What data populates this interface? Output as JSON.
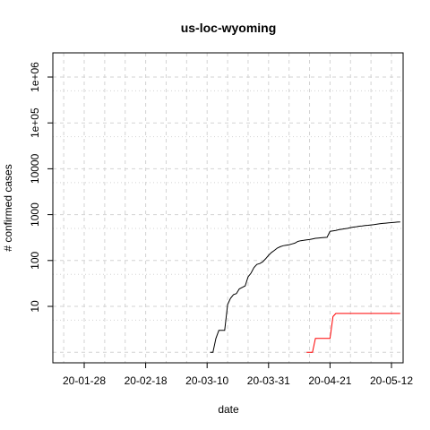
{
  "chart_data": {
    "type": "line",
    "title": "us-loc-wyoming",
    "xlabel": "date",
    "ylabel": "# confirmed cases",
    "y_scale": "log",
    "grid": true,
    "x_ticks": [
      "20-01-28",
      "20-02-18",
      "20-03-10",
      "20-03-31",
      "20-04-21",
      "20-05-12"
    ],
    "y_ticks": [
      "10",
      "100",
      "1000",
      "10000",
      "1e+05",
      "1e+06"
    ],
    "series": [
      {
        "color": "#000000",
        "points": [
          [
            "2020-03-11",
            1
          ],
          [
            "2020-03-12",
            1
          ],
          [
            "2020-03-13",
            2
          ],
          [
            "2020-03-14",
            3
          ],
          [
            "2020-03-15",
            3
          ],
          [
            "2020-03-16",
            3
          ],
          [
            "2020-03-17",
            11
          ],
          [
            "2020-03-18",
            15
          ],
          [
            "2020-03-19",
            18
          ],
          [
            "2020-03-20",
            19
          ],
          [
            "2020-03-21",
            24
          ],
          [
            "2020-03-22",
            26
          ],
          [
            "2020-03-23",
            28
          ],
          [
            "2020-03-24",
            44
          ],
          [
            "2020-03-25",
            53
          ],
          [
            "2020-03-26",
            70
          ],
          [
            "2020-03-27",
            82
          ],
          [
            "2020-03-28",
            86
          ],
          [
            "2020-03-29",
            94
          ],
          [
            "2020-03-30",
            109
          ],
          [
            "2020-03-31",
            130
          ],
          [
            "2020-04-01",
            150
          ],
          [
            "2020-04-02",
            166
          ],
          [
            "2020-04-03",
            187
          ],
          [
            "2020-04-04",
            200
          ],
          [
            "2020-04-05",
            210
          ],
          [
            "2020-04-06",
            216
          ],
          [
            "2020-04-07",
            221
          ],
          [
            "2020-04-08",
            230
          ],
          [
            "2020-04-09",
            239
          ],
          [
            "2020-04-10",
            261
          ],
          [
            "2020-04-11",
            270
          ],
          [
            "2020-04-12",
            275
          ],
          [
            "2020-04-13",
            282
          ],
          [
            "2020-04-14",
            287
          ],
          [
            "2020-04-15",
            296
          ],
          [
            "2020-04-16",
            305
          ],
          [
            "2020-04-17",
            309
          ],
          [
            "2020-04-18",
            313
          ],
          [
            "2020-04-19",
            317
          ],
          [
            "2020-04-20",
            320
          ],
          [
            "2020-04-21",
            434
          ],
          [
            "2020-04-22",
            443
          ],
          [
            "2020-04-23",
            453
          ],
          [
            "2020-04-24",
            470
          ],
          [
            "2020-04-25",
            480
          ],
          [
            "2020-04-26",
            491
          ],
          [
            "2020-04-27",
            502
          ],
          [
            "2020-04-28",
            520
          ],
          [
            "2020-04-29",
            536
          ],
          [
            "2020-04-30",
            545
          ],
          [
            "2020-05-01",
            559
          ],
          [
            "2020-05-02",
            566
          ],
          [
            "2020-05-03",
            579
          ],
          [
            "2020-05-04",
            586
          ],
          [
            "2020-05-05",
            596
          ],
          [
            "2020-05-06",
            604
          ],
          [
            "2020-05-07",
            620
          ],
          [
            "2020-05-08",
            631
          ],
          [
            "2020-05-09",
            644
          ],
          [
            "2020-05-10",
            653
          ],
          [
            "2020-05-11",
            661
          ],
          [
            "2020-05-12",
            669
          ],
          [
            "2020-05-13",
            678
          ],
          [
            "2020-05-14",
            688
          ],
          [
            "2020-05-15",
            694
          ]
        ]
      },
      {
        "color": "#ff0000",
        "points": [
          [
            "2020-04-13",
            1
          ],
          [
            "2020-04-14",
            1
          ],
          [
            "2020-04-15",
            1
          ],
          [
            "2020-04-16",
            2
          ],
          [
            "2020-04-17",
            2
          ],
          [
            "2020-04-18",
            2
          ],
          [
            "2020-04-19",
            2
          ],
          [
            "2020-04-20",
            2
          ],
          [
            "2020-04-21",
            2
          ],
          [
            "2020-04-22",
            6
          ],
          [
            "2020-04-23",
            7
          ],
          [
            "2020-04-24",
            7
          ],
          [
            "2020-04-25",
            7
          ],
          [
            "2020-04-26",
            7
          ],
          [
            "2020-04-27",
            7
          ],
          [
            "2020-04-28",
            7
          ],
          [
            "2020-04-29",
            7
          ],
          [
            "2020-04-30",
            7
          ],
          [
            "2020-05-01",
            7
          ],
          [
            "2020-05-02",
            7
          ],
          [
            "2020-05-03",
            7
          ],
          [
            "2020-05-04",
            7
          ],
          [
            "2020-05-05",
            7
          ],
          [
            "2020-05-06",
            7
          ],
          [
            "2020-05-07",
            7
          ],
          [
            "2020-05-08",
            7
          ],
          [
            "2020-05-09",
            7
          ],
          [
            "2020-05-10",
            7
          ],
          [
            "2020-05-11",
            7
          ],
          [
            "2020-05-12",
            7
          ],
          [
            "2020-05-13",
            7
          ],
          [
            "2020-05-14",
            7
          ],
          [
            "2020-05-15",
            7
          ]
        ]
      }
    ]
  }
}
